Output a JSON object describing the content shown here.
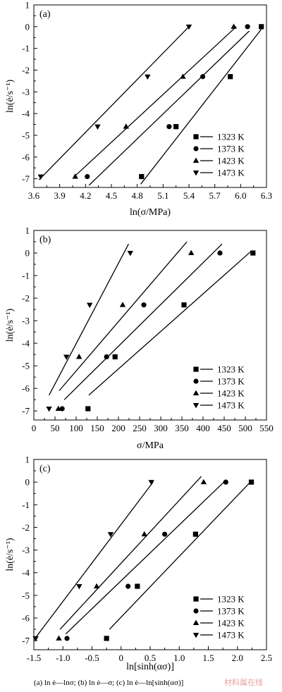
{
  "caption": "(a)  ln ė—lnσ; (b)  ln ė—σ; (c)  ln ė—ln[sinh(ασ)]",
  "watermark": "材料属在线",
  "chart_data": [
    {
      "type": "scatter",
      "panel_label": "(a)",
      "xlabel": "ln(σ/MPa)",
      "ylabel": "ln(ė/s⁻¹)",
      "xlim": [
        3.6,
        6.3
      ],
      "ylim": [
        -7.4,
        1.0
      ],
      "xticks": [
        "3.6",
        "3.9",
        "4.2",
        "4.5",
        "4.8",
        "5.1",
        "5.4",
        "5.7",
        "6.0",
        "6.3"
      ],
      "xtick_values": [
        3.6,
        3.9,
        4.2,
        4.5,
        4.8,
        5.1,
        5.4,
        5.7,
        6.0,
        6.3
      ],
      "yticks": [
        "1",
        "0",
        "-1",
        "-2",
        "-3",
        "-4",
        "-5",
        "-6",
        "-7"
      ],
      "ytick_values": [
        1,
        0,
        -1,
        -2,
        -3,
        -4,
        -5,
        -6,
        -7
      ],
      "legend_position": "bottom-right",
      "series": [
        {
          "name": "1323 K",
          "marker": "square",
          "x": [
            4.85,
            5.25,
            5.88,
            6.24
          ],
          "y": [
            -6.9,
            -4.6,
            -2.3,
            0.0
          ],
          "fit": [
            [
              4.84,
              -7.25
            ],
            [
              6.24,
              -0.12
            ]
          ]
        },
        {
          "name": "1373 K",
          "marker": "circle",
          "x": [
            4.22,
            5.17,
            5.56,
            6.08
          ],
          "y": [
            -6.9,
            -4.6,
            -2.3,
            0.0
          ],
          "fit": [
            [
              4.24,
              -7.3
            ],
            [
              6.1,
              -0.2
            ]
          ]
        },
        {
          "name": "1423 K",
          "marker": "triangle-up",
          "x": [
            4.08,
            4.67,
            5.33,
            5.92
          ],
          "y": [
            -6.9,
            -4.6,
            -2.3,
            0.0
          ],
          "fit": [
            [
              4.07,
              -6.9
            ],
            [
              5.95,
              0.0
            ]
          ]
        },
        {
          "name": "1473 K",
          "marker": "triangle-down",
          "x": [
            3.68,
            4.34,
            4.92,
            5.4
          ],
          "y": [
            -6.9,
            -4.6,
            -2.3,
            0.0
          ],
          "fit": [
            [
              3.66,
              -7.05
            ],
            [
              5.4,
              0.0
            ]
          ]
        }
      ]
    },
    {
      "type": "scatter",
      "panel_label": "(b)",
      "xlabel": "σ/MPa",
      "ylabel": "ln(ė/s⁻¹)",
      "xlim": [
        0,
        550
      ],
      "ylim": [
        -7.4,
        1.0
      ],
      "xticks": [
        "0",
        "50",
        "100",
        "150",
        "200",
        "250",
        "300",
        "350",
        "400",
        "450",
        "500",
        "550"
      ],
      "xtick_values": [
        0,
        50,
        100,
        150,
        200,
        250,
        300,
        350,
        400,
        450,
        500,
        550
      ],
      "yticks": [
        "1",
        "0",
        "-1",
        "-2",
        "-3",
        "-4",
        "-5",
        "-6",
        "-7"
      ],
      "ytick_values": [
        1,
        0,
        -1,
        -2,
        -3,
        -4,
        -5,
        -6,
        -7
      ],
      "legend_position": "bottom-right",
      "series": [
        {
          "name": "1323 K",
          "marker": "square",
          "x": [
            128,
            192,
            355,
            518
          ],
          "y": [
            -6.9,
            -4.6,
            -2.3,
            0.0
          ],
          "fit": [
            [
              130,
              -6.3
            ],
            [
              515,
              0.1
            ]
          ]
        },
        {
          "name": "1373 K",
          "marker": "circle",
          "x": [
            67,
            172,
            260,
            440
          ],
          "y": [
            -6.9,
            -4.6,
            -2.3,
            0.0
          ],
          "fit": [
            [
              72,
              -6.5
            ],
            [
              445,
              0.4
            ]
          ]
        },
        {
          "name": "1423 K",
          "marker": "triangle-up",
          "x": [
            58,
            107,
            210,
            372
          ],
          "y": [
            -6.9,
            -4.6,
            -2.3,
            0.0
          ],
          "fit": [
            [
              60,
              -6.1
            ],
            [
              362,
              0.5
            ]
          ]
        },
        {
          "name": "1473 K",
          "marker": "triangle-down",
          "x": [
            36,
            77,
            132,
            228
          ],
          "y": [
            -6.9,
            -4.6,
            -2.3,
            0.0
          ],
          "fit": [
            [
              36,
              -6.3
            ],
            [
              224,
              0.4
            ]
          ]
        }
      ]
    },
    {
      "type": "scatter",
      "panel_label": "(c)",
      "xlabel": "ln[sinh(ασ)]",
      "ylabel": "ln(ė/s⁻¹)",
      "xlim": [
        -1.5,
        2.5
      ],
      "ylim": [
        -7.4,
        1.0
      ],
      "xticks": [
        "-1.5",
        "-1.0",
        "-0.5",
        "0",
        "0.5",
        "1.0",
        "1.5",
        "2.0",
        "2.5"
      ],
      "xtick_values": [
        -1.5,
        -1.0,
        -0.5,
        0,
        0.5,
        1.0,
        1.5,
        2.0,
        2.5
      ],
      "yticks": [
        "1",
        "0",
        "-1",
        "-2",
        "-3",
        "-4",
        "-5",
        "-6",
        "-7"
      ],
      "ytick_values": [
        1,
        0,
        -1,
        -2,
        -3,
        -4,
        -5,
        -6,
        -7
      ],
      "legend_position": "bottom-right",
      "series": [
        {
          "name": "1323 K",
          "marker": "square",
          "x": [
            -0.25,
            0.28,
            1.28,
            2.24
          ],
          "y": [
            -6.9,
            -4.6,
            -2.3,
            0.0
          ],
          "fit": [
            [
              -0.2,
              -6.5
            ],
            [
              2.24,
              0.05
            ]
          ]
        },
        {
          "name": "1373 K",
          "marker": "circle",
          "x": [
            -0.93,
            0.12,
            0.75,
            1.8
          ],
          "y": [
            -6.9,
            -4.6,
            -2.3,
            0.0
          ],
          "fit": [
            [
              -0.95,
              -6.7
            ],
            [
              1.8,
              0.08
            ]
          ]
        },
        {
          "name": "1423 K",
          "marker": "triangle-up",
          "x": [
            -1.07,
            -0.42,
            0.4,
            1.42
          ],
          "y": [
            -6.9,
            -4.6,
            -2.3,
            0.0
          ],
          "fit": [
            [
              -1.05,
              -6.5
            ],
            [
              1.38,
              0.25
            ]
          ]
        },
        {
          "name": "1473 K",
          "marker": "triangle-down",
          "x": [
            -1.47,
            -0.72,
            -0.18,
            0.52
          ],
          "y": [
            -6.9,
            -4.6,
            -2.3,
            0.0
          ],
          "fit": [
            [
              -1.48,
              -6.9
            ],
            [
              0.55,
              0.0
            ]
          ]
        }
      ]
    }
  ]
}
